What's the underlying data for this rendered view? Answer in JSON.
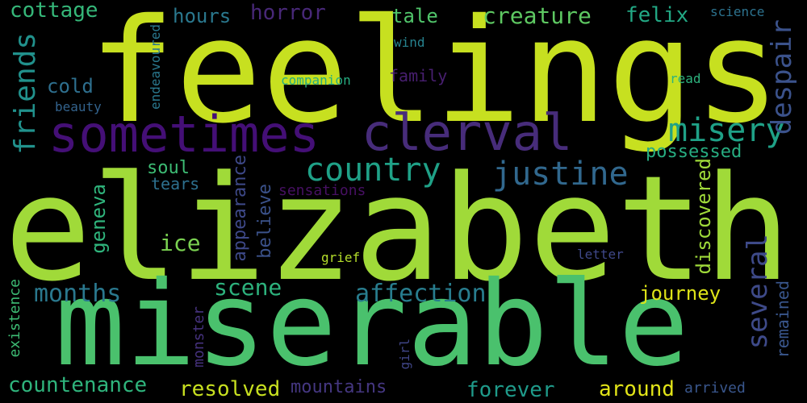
{
  "background": "#000000",
  "words": [
    {
      "id": "feelings",
      "text": "feelings",
      "color": "#c7e020"
    },
    {
      "id": "elizabeth",
      "text": "elizabeth",
      "color": "#a0da39"
    },
    {
      "id": "miserable",
      "text": "miserable",
      "color": "#4ac16d"
    },
    {
      "id": "sometimes",
      "text": "sometimes",
      "color": "#440f76"
    },
    {
      "id": "clerval",
      "text": "clerval",
      "color": "#472c7a"
    },
    {
      "id": "misery",
      "text": "misery",
      "color": "#1fa187"
    },
    {
      "id": "country",
      "text": "country",
      "color": "#1fa187"
    },
    {
      "id": "justine",
      "text": "justine",
      "color": "#31688e"
    },
    {
      "id": "friends",
      "text": "friends",
      "color": "#21918c"
    },
    {
      "id": "despair",
      "text": "despair",
      "color": "#3b528b"
    },
    {
      "id": "several",
      "text": "several",
      "color": "#3e4a89"
    },
    {
      "id": "cottage",
      "text": "cottage",
      "color": "#35b779"
    },
    {
      "id": "hours",
      "text": "hours",
      "color": "#2a788e"
    },
    {
      "id": "horror",
      "text": "horror",
      "color": "#482878"
    },
    {
      "id": "tale",
      "text": "tale",
      "color": "#50c46a"
    },
    {
      "id": "creature",
      "text": "creature",
      "color": "#5ec962"
    },
    {
      "id": "felix",
      "text": "felix",
      "color": "#22a884"
    },
    {
      "id": "science",
      "text": "science",
      "color": "#2c728e"
    },
    {
      "id": "endeavoured",
      "text": "endeavoured",
      "color": "#2a788e"
    },
    {
      "id": "wind",
      "text": "wind",
      "color": "#26828e"
    },
    {
      "id": "cold",
      "text": "cold",
      "color": "#2e6f8e"
    },
    {
      "id": "companion",
      "text": "companion",
      "color": "#26ad81"
    },
    {
      "id": "family",
      "text": "family",
      "color": "#481f70"
    },
    {
      "id": "read",
      "text": "read",
      "color": "#2db27d"
    },
    {
      "id": "beauty",
      "text": "beauty",
      "color": "#33638d"
    },
    {
      "id": "possessed",
      "text": "possessed",
      "color": "#27ad81"
    },
    {
      "id": "soul",
      "text": "soul",
      "color": "#3dbc74"
    },
    {
      "id": "tears",
      "text": "tears",
      "color": "#2d708e"
    },
    {
      "id": "sensations",
      "text": "sensations",
      "color": "#471063"
    },
    {
      "id": "geneva",
      "text": "geneva",
      "color": "#2fb47c"
    },
    {
      "id": "appearance",
      "text": "appearance",
      "color": "#3e4989"
    },
    {
      "id": "believe",
      "text": "believe",
      "color": "#3b528b"
    },
    {
      "id": "discovered",
      "text": "discovered",
      "color": "#9fda3a"
    },
    {
      "id": "ice",
      "text": "ice",
      "color": "#7ad151"
    },
    {
      "id": "grief",
      "text": "grief",
      "color": "#b5de2b"
    },
    {
      "id": "letter",
      "text": "letter",
      "color": "#3f4889"
    },
    {
      "id": "months",
      "text": "months",
      "color": "#2a788e"
    },
    {
      "id": "scene",
      "text": "scene",
      "color": "#2db27d"
    },
    {
      "id": "affection",
      "text": "affection",
      "color": "#287d8e"
    },
    {
      "id": "journey",
      "text": "journey",
      "color": "#dde318"
    },
    {
      "id": "existence",
      "text": "existence",
      "color": "#3dbc74"
    },
    {
      "id": "monster",
      "text": "monster",
      "color": "#46327e"
    },
    {
      "id": "girl",
      "text": "girl",
      "color": "#404688"
    },
    {
      "id": "remained",
      "text": "remained",
      "color": "#39568c"
    },
    {
      "id": "countenance",
      "text": "countenance",
      "color": "#2fb47c"
    },
    {
      "id": "resolved",
      "text": "resolved",
      "color": "#c8e020"
    },
    {
      "id": "mountains",
      "text": "mountains",
      "color": "#453781"
    },
    {
      "id": "forever",
      "text": "forever",
      "color": "#1f9a8a"
    },
    {
      "id": "around",
      "text": "around",
      "color": "#e2e418"
    },
    {
      "id": "arrived",
      "text": "arrived",
      "color": "#39568c"
    }
  ]
}
